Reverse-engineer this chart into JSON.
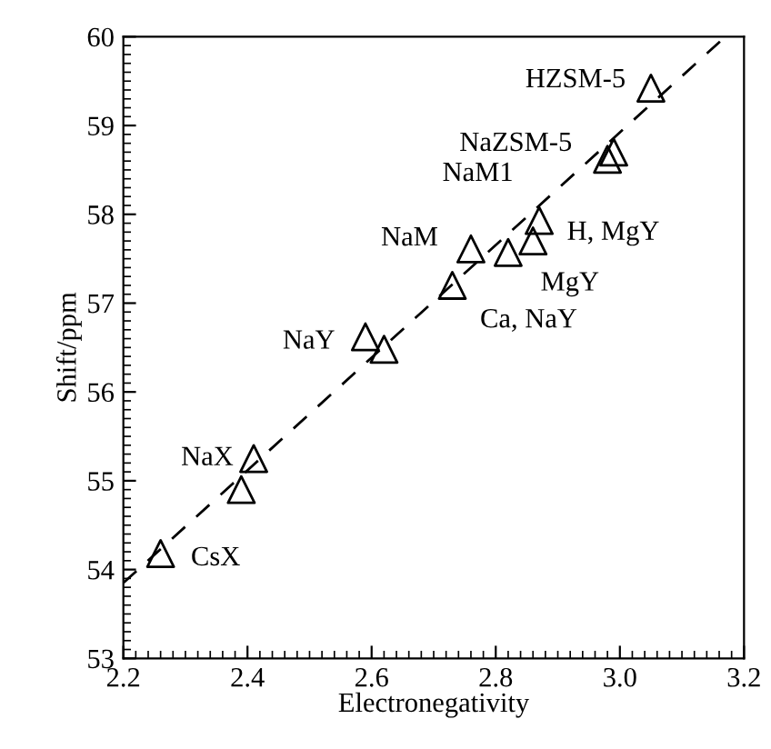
{
  "chart_data": {
    "type": "scatter",
    "xlabel": "Electronegativity",
    "ylabel": "Shift/ppm",
    "xlim": [
      2.2,
      3.2
    ],
    "xticks": [
      {
        "value": 2.2,
        "label": "2.2"
      },
      {
        "value": 2.4,
        "label": "2.4"
      },
      {
        "value": 2.6,
        "label": "2.6"
      },
      {
        "value": 2.8,
        "label": "2.8"
      },
      {
        "value": 3.0,
        "label": "3.0"
      },
      {
        "value": 3.2,
        "label": "3.2"
      }
    ],
    "ylim": [
      53,
      60
    ],
    "yticks": [
      53,
      54,
      55,
      56,
      57,
      58,
      59,
      60
    ],
    "grid": false,
    "legend": false,
    "series": [
      {
        "color": "#000000",
        "marker": "triangle",
        "x": [
          2.26,
          2.39,
          2.41,
          2.59,
          2.62,
          2.73,
          2.76,
          2.82,
          2.86,
          2.87,
          2.98,
          2.99,
          3.05
        ],
        "values": [
          54.18,
          54.9,
          55.25,
          56.62,
          56.48,
          57.2,
          57.61,
          57.57,
          57.7,
          57.93,
          58.62,
          58.7,
          59.42
        ]
      },
      {
        "type": "line",
        "color": "#000000",
        "line_style": "dashed",
        "marker": "none",
        "x": [
          2.2,
          3.17
        ],
        "values": [
          53.85,
          60
        ]
      }
    ],
    "annotations": [
      {
        "text": "HZSM-5",
        "x": 3.05,
        "y": 59.42
      },
      {
        "text": "NaZSM-5",
        "x": 2.98,
        "y": 58.62
      },
      {
        "text": "NaM1",
        "x": 2.82,
        "y": 57.57
      },
      {
        "text": "NaM",
        "x": 2.76,
        "y": 57.61
      },
      {
        "text": "H, MgY",
        "x": 2.87,
        "y": 57.93
      },
      {
        "text": "MgY",
        "x": 2.86,
        "y": 57.7
      },
      {
        "text": "Ca, NaY",
        "x": 2.73,
        "y": 57.2
      },
      {
        "text": "NaY",
        "x": 2.59,
        "y": 56.62
      },
      {
        "text": "NaX",
        "x": 2.41,
        "y": 55.25
      },
      {
        "text": "CsX",
        "x": 2.26,
        "y": 54.18
      }
    ]
  }
}
